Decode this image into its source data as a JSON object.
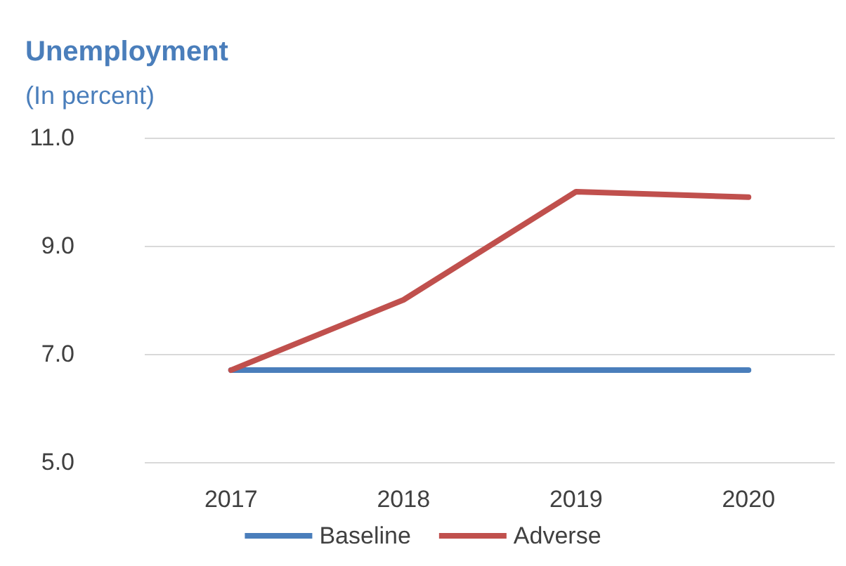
{
  "chart_data": {
    "type": "line",
    "title": "Unemployment",
    "subtitle": "(In percent)",
    "categories": [
      "2017",
      "2018",
      "2019",
      "2020"
    ],
    "series": [
      {
        "name": "Baseline",
        "color": "#4a7ebb",
        "values": [
          6.7,
          6.7,
          6.7,
          6.7
        ]
      },
      {
        "name": "Adverse",
        "color": "#c0504d",
        "values": [
          6.7,
          8.0,
          10.0,
          9.9
        ]
      }
    ],
    "ylim": [
      5,
      11
    ],
    "yticks": [
      {
        "value": 5,
        "label": "5.0"
      },
      {
        "value": 7,
        "label": "7.0"
      },
      {
        "value": 9,
        "label": "9.0"
      },
      {
        "value": 11,
        "label": "11.0"
      }
    ],
    "grid": "y",
    "legend": "bottom",
    "marker": "none",
    "line_style": "solid"
  }
}
